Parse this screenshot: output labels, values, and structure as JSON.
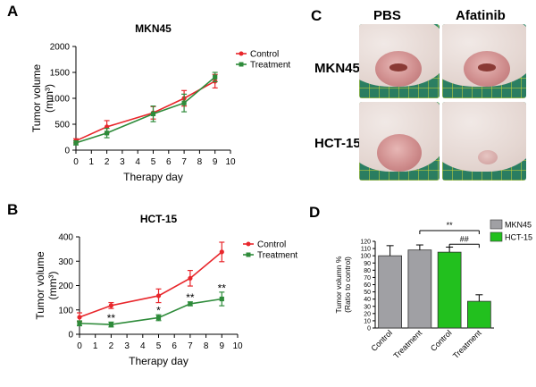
{
  "panel_labels": {
    "a": "A",
    "b": "B",
    "c": "C",
    "d": "D"
  },
  "chart_data": [
    {
      "id": "A",
      "type": "line",
      "title": "MKN45",
      "xlabel": "Therapy day",
      "ylabel": "Tumor volume",
      "ylabel_unit": "(mm³)",
      "xlim": [
        0,
        10
      ],
      "ylim": [
        0,
        2000
      ],
      "xticks": [
        "0",
        "1",
        "2",
        "3",
        "4",
        "5",
        "6",
        "7",
        "8",
        "9",
        "10"
      ],
      "yticks": [
        "0",
        "500",
        "1000",
        "1500",
        "2000"
      ],
      "legend": [
        "Control",
        "Treatment"
      ],
      "legend_position": "top-right",
      "x": [
        0,
        2,
        5,
        7,
        9
      ],
      "series": [
        {
          "name": "Control",
          "color": "#e8262b",
          "values": [
            180,
            450,
            720,
            1000,
            1330
          ],
          "errors": [
            40,
            120,
            120,
            150,
            130
          ]
        },
        {
          "name": "Treatment",
          "color": "#2e8b3a",
          "values": [
            140,
            330,
            700,
            910,
            1410
          ],
          "errors": [
            40,
            90,
            150,
            170,
            90
          ]
        }
      ],
      "annotations": []
    },
    {
      "id": "B",
      "type": "line",
      "title": "HCT-15",
      "xlabel": "Therapy day",
      "ylabel": "Tumor volume",
      "ylabel_unit": "(mm³)",
      "xlim": [
        0,
        10
      ],
      "ylim": [
        0,
        400
      ],
      "xticks": [
        "0",
        "1",
        "2",
        "3",
        "4",
        "5",
        "6",
        "7",
        "8",
        "9",
        "10"
      ],
      "yticks": [
        "0",
        "100",
        "200",
        "300",
        "400"
      ],
      "legend": [
        "Control",
        "Treatment"
      ],
      "legend_position": "top-right",
      "x": [
        0,
        2,
        5,
        7,
        9
      ],
      "series": [
        {
          "name": "Control",
          "color": "#e8262b",
          "values": [
            70,
            118,
            158,
            230,
            338
          ],
          "errors": [
            18,
            12,
            28,
            32,
            40
          ]
        },
        {
          "name": "Treatment",
          "color": "#2e8b3a",
          "values": [
            45,
            40,
            68,
            125,
            145
          ],
          "errors": [
            10,
            10,
            12,
            8,
            28
          ]
        }
      ],
      "annotations": [
        {
          "x": 2,
          "y": 52,
          "text": "**"
        },
        {
          "x": 5,
          "y": 82,
          "text": "*"
        },
        {
          "x": 7,
          "y": 135,
          "text": "**"
        },
        {
          "x": 9,
          "y": 175,
          "text": "**"
        }
      ]
    },
    {
      "id": "D",
      "type": "bar",
      "title": "",
      "ylabel": "Tumor volumn %",
      "ylabel2": "(Ratio to control)",
      "ylim": [
        0,
        120
      ],
      "yticks": [
        "0",
        "10",
        "20",
        "30",
        "40",
        "50",
        "60",
        "70",
        "80",
        "90",
        "100",
        "110",
        "120"
      ],
      "categories": [
        "Control",
        "Treatment",
        "Control",
        "Treatment"
      ],
      "groups": [
        "MKN45",
        "MKN45",
        "HCT-15",
        "HCT-15"
      ],
      "values": [
        100,
        108,
        105,
        37
      ],
      "errors": [
        14,
        7,
        7,
        9
      ],
      "colors": [
        "#a0a0a4",
        "#a0a0a4",
        "#22c01e",
        "#22c01e"
      ],
      "legend": [
        {
          "label": "MKN45",
          "color": "#a0a0a4"
        },
        {
          "label": "HCT-15",
          "color": "#22c01e"
        }
      ],
      "legend_position": "top-right",
      "annotations": [
        {
          "text": "**",
          "from": 1,
          "to": 3,
          "y": 120
        },
        {
          "text": "##",
          "from": 2,
          "to": 3,
          "y": 111
        }
      ]
    }
  ],
  "panel_c": {
    "col_titles": [
      "PBS",
      "Afatinib"
    ],
    "row_labels": [
      "MKN45",
      "HCT-15"
    ]
  }
}
